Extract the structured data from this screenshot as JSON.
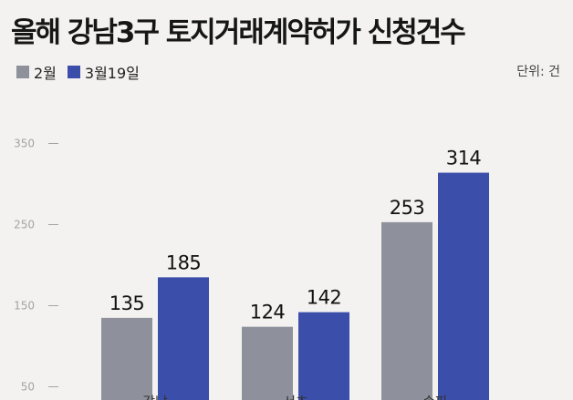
{
  "title": "올해 강남3구 토지거래계약허가 신청건수",
  "unit": "단위: 건",
  "legend": [
    {
      "label": "2월",
      "color": "#8e919c"
    },
    {
      "label": "3월19일",
      "color": "#3b4eaa"
    }
  ],
  "chart_data": {
    "type": "bar",
    "categories": [
      "강남",
      "서초",
      "송파"
    ],
    "series": [
      {
        "name": "2월",
        "values": [
          135,
          124,
          253
        ],
        "color": "#8e919c"
      },
      {
        "name": "3월19일",
        "values": [
          185,
          142,
          314
        ],
        "color": "#3b4eaa"
      }
    ],
    "yticks": [
      50,
      150,
      250,
      350
    ],
    "ylim": [
      0,
      350
    ],
    "grid": false,
    "legend_position": "top-left",
    "xlabel": "",
    "ylabel": ""
  }
}
